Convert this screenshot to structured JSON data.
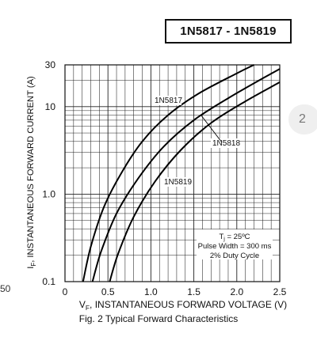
{
  "part_numbers": "1N5817 - 1N5819",
  "page_number": "2",
  "stray_text": "50",
  "caption": "Fig. 2 Typical Forward Characteristics",
  "chart_data": {
    "type": "line",
    "x_scale": "linear",
    "y_scale": "log",
    "xlim": [
      0,
      2.5
    ],
    "ylim": [
      0.1,
      30
    ],
    "x_ticks": [
      "0",
      "0.5",
      "1.0",
      "1.5",
      "2.0",
      "2.5"
    ],
    "x_tick_values": [
      0,
      0.5,
      1.0,
      1.5,
      2.0,
      2.5
    ],
    "y_ticks": [
      "30",
      "10",
      "1.0",
      "0.1"
    ],
    "y_tick_values": [
      30,
      10,
      1.0,
      0.1
    ],
    "grid": true,
    "ylabel": {
      "pre": "I",
      "sub": "F",
      "post": ", INSTANTANEOUS FORWARD CURRENT (A)"
    },
    "xlabel": {
      "pre": "V",
      "sub": "F",
      "post": ", INSTANTANEOUS FORWARD VOLTAGE (V)"
    },
    "series": [
      {
        "name": "1N5817",
        "x": [
          0.21,
          0.3,
          0.45,
          0.65,
          0.9,
          1.2,
          1.55,
          2.0,
          2.2
        ],
        "y": [
          0.1,
          0.25,
          0.7,
          1.7,
          4,
          8,
          14,
          24,
          30
        ]
      },
      {
        "name": "1N5818",
        "x": [
          0.32,
          0.42,
          0.6,
          0.85,
          1.15,
          1.5,
          1.9,
          2.3,
          2.5
        ],
        "y": [
          0.1,
          0.22,
          0.6,
          1.5,
          3.5,
          7,
          12.5,
          21,
          27
        ]
      },
      {
        "name": "1N5819",
        "x": [
          0.52,
          0.62,
          0.8,
          1.05,
          1.35,
          1.7,
          2.1,
          2.5
        ],
        "y": [
          0.1,
          0.21,
          0.55,
          1.4,
          3.2,
          6.5,
          11.5,
          19
        ]
      }
    ],
    "annotation": {
      "line1": {
        "pre": "T",
        "sub": "j",
        "post": " = 25ºC"
      },
      "line2": "Pulse Width = 300 ms",
      "line3": "2% Duty Cycle"
    }
  }
}
